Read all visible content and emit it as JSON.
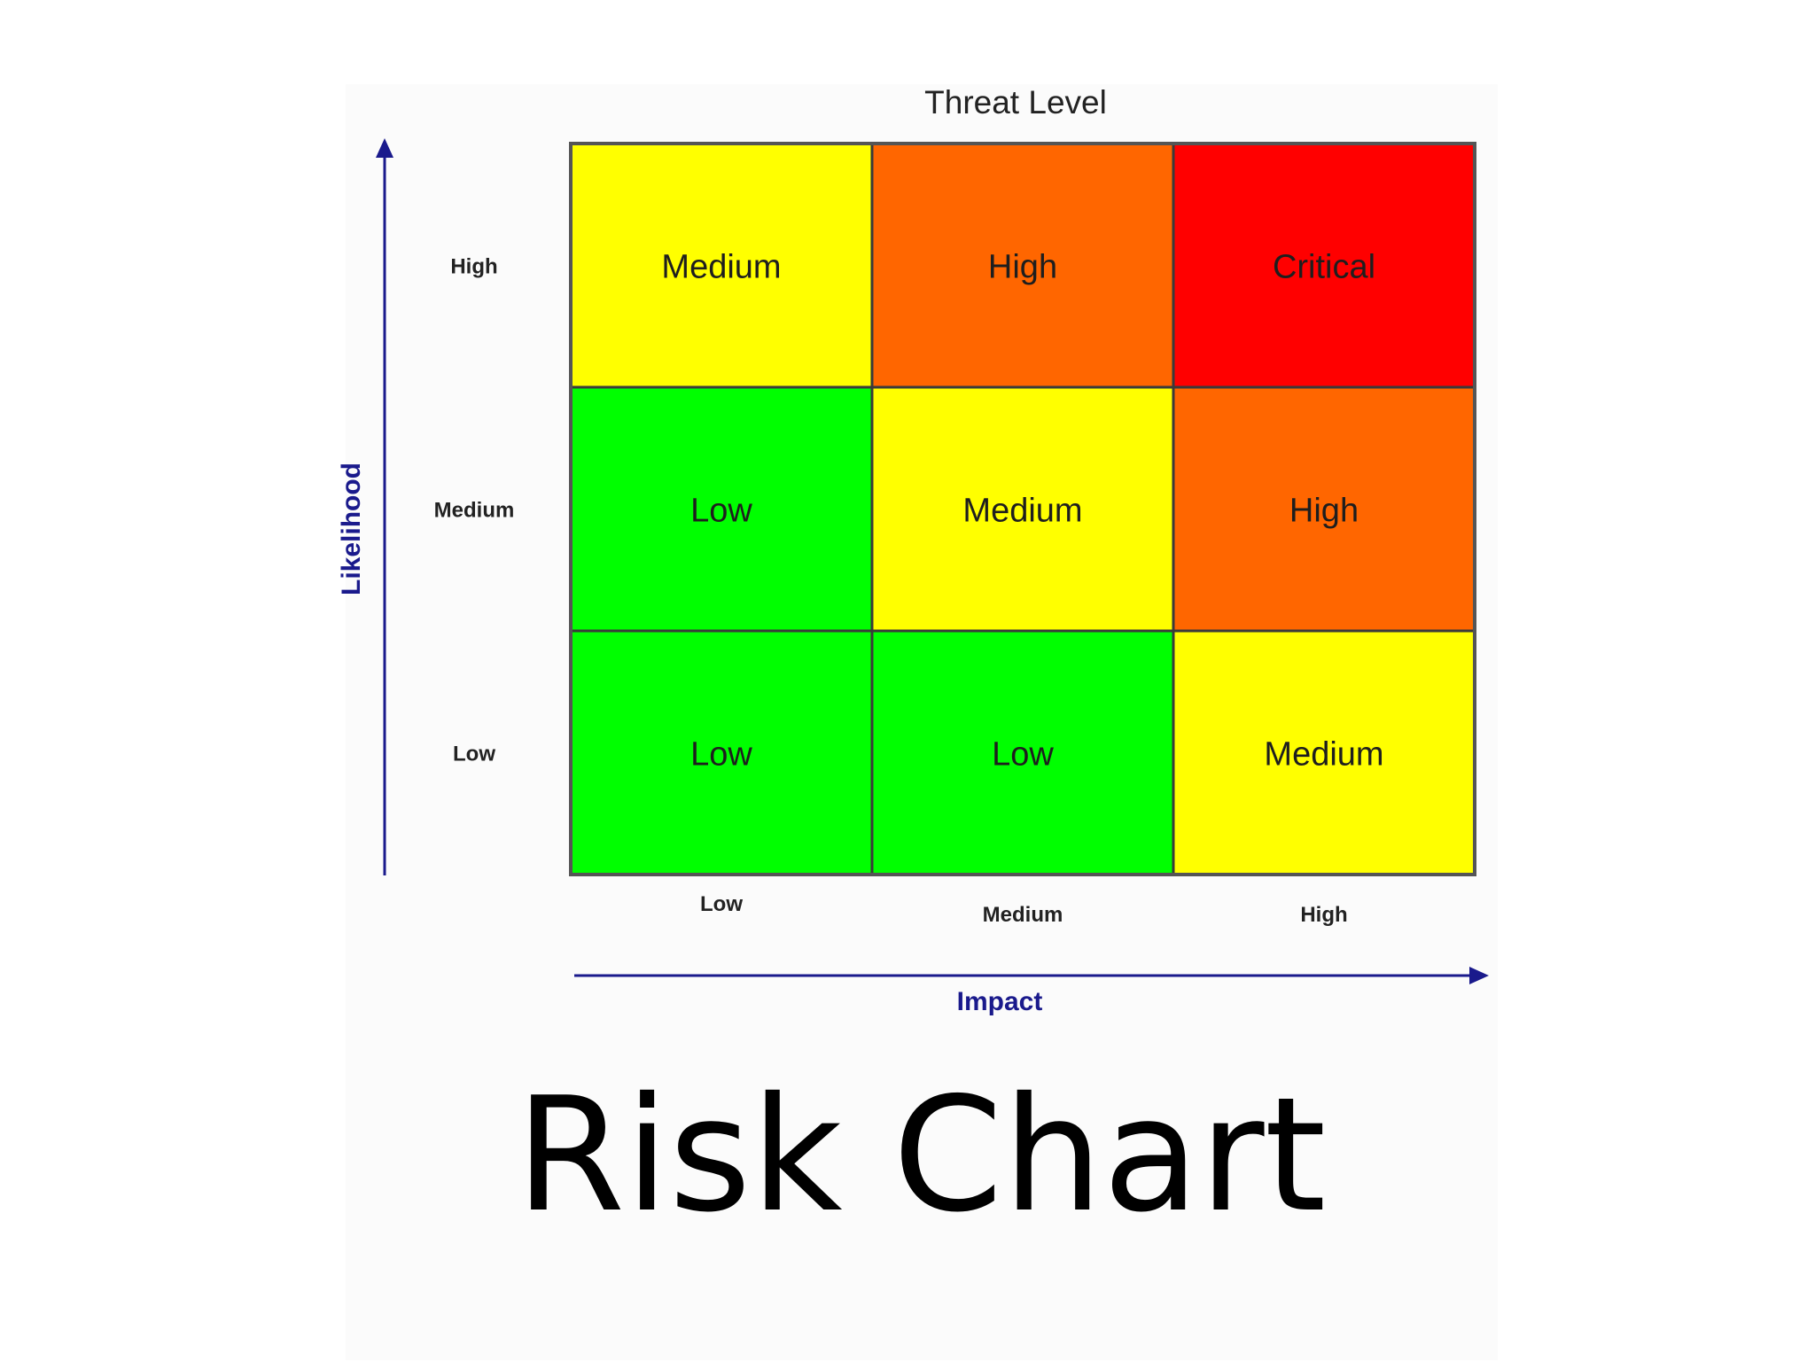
{
  "slide": {
    "caption": "Risk Chart"
  },
  "chart_data": {
    "type": "heatmap",
    "title": "Threat Level",
    "xlabel": "Impact",
    "ylabel": "Likelihood",
    "x_categories": [
      "Low",
      "Medium",
      "High"
    ],
    "y_categories": [
      "High",
      "Medium",
      "Low"
    ],
    "cells": [
      [
        "Medium",
        "High",
        "Critical"
      ],
      [
        "Low",
        "Medium",
        "High"
      ],
      [
        "Low",
        "Low",
        "Medium"
      ]
    ],
    "level_colors": {
      "Low": "#00ff00",
      "Medium": "#ffff00",
      "High": "#ff6600",
      "Critical": "#ff0000"
    },
    "axis_color": "#1a1a8c",
    "legend": "none",
    "grid": true
  }
}
